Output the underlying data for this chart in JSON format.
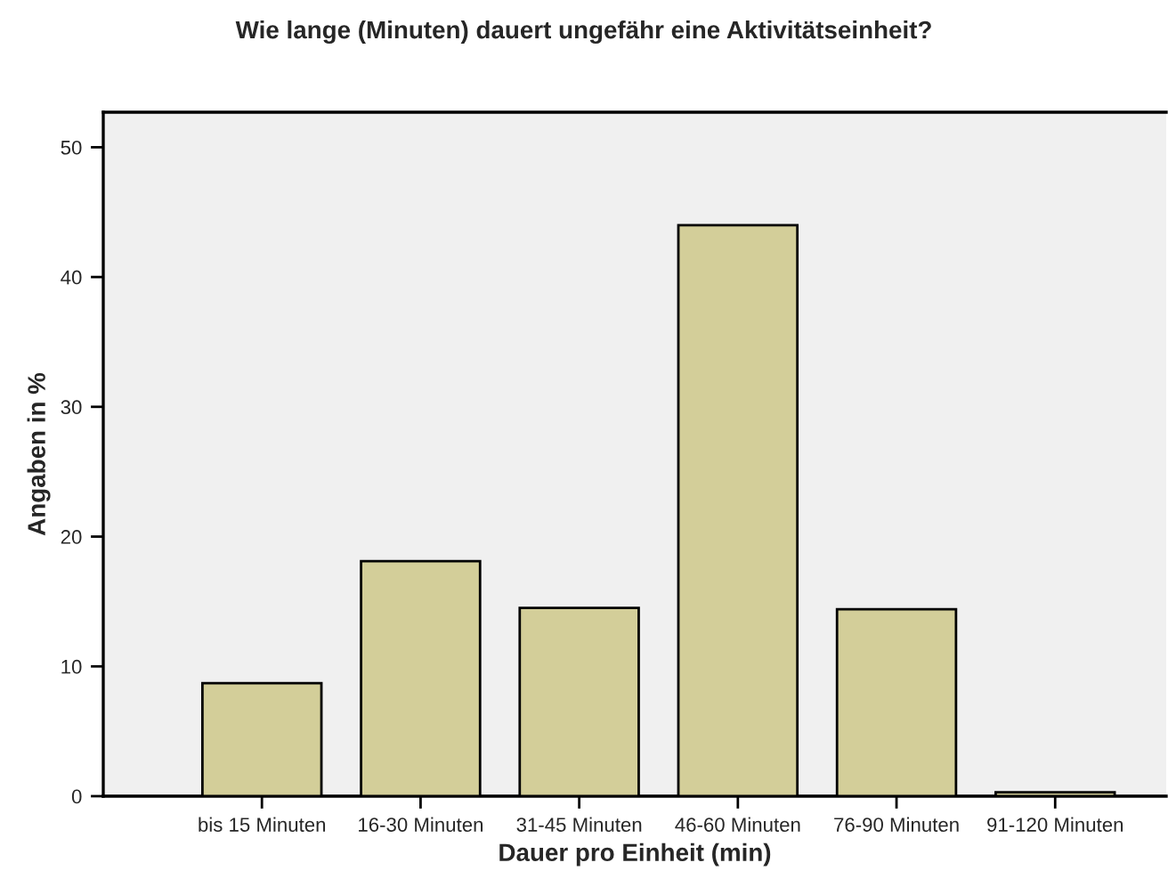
{
  "chart_data": {
    "type": "bar",
    "title": "Wie lange (Minuten) dauert ungefähr eine Aktivitätseinheit?",
    "xlabel": "Dauer pro Einheit (min)",
    "ylabel": "Angaben in %",
    "categories": [
      "bis 15 Minuten",
      "16-30 Minuten",
      "31-45 Minuten",
      "46-60 Minuten",
      "76-90 Minuten",
      "91-120 Minuten"
    ],
    "values": [
      8.7,
      18.1,
      14.5,
      44.0,
      14.4,
      0.3
    ],
    "color": "#d3ce99",
    "ylim": [
      0,
      52.7
    ],
    "yticks": [
      0,
      10,
      20,
      30,
      40,
      50
    ],
    "grid": false
  }
}
